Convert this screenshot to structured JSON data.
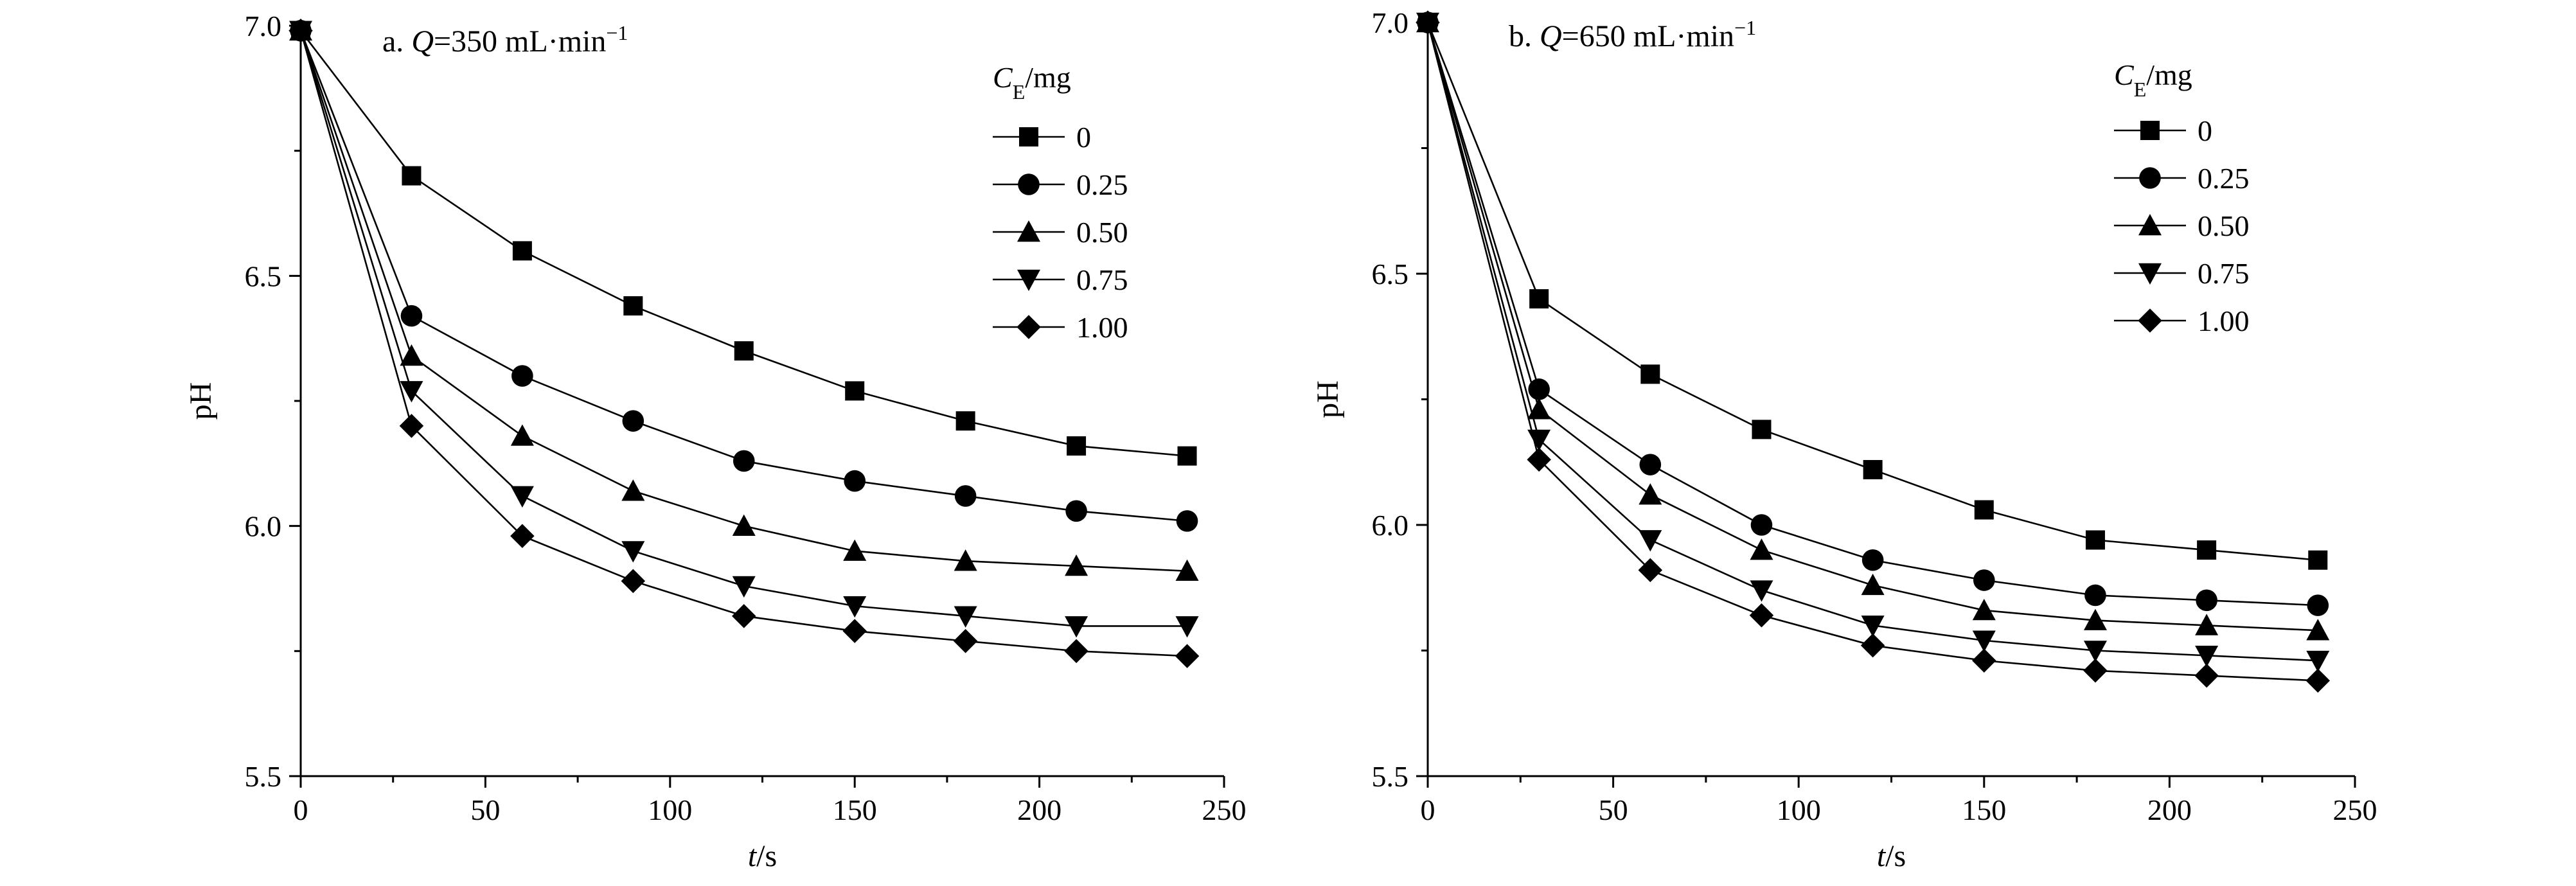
{
  "chart_data": [
    {
      "type": "line",
      "title": "a. Q=350 mL·min⁻¹",
      "title_parts": {
        "prefix": "a. ",
        "var": "Q",
        "rest": "=350 mL·min",
        "sup": "−1"
      },
      "xlabel": "t/s",
      "xlabel_parts": {
        "var": "t",
        "rest": "/s"
      },
      "ylabel": "pH",
      "xlim": [
        0,
        250
      ],
      "ylim": [
        5.5,
        7.0
      ],
      "xticks": [
        0,
        50,
        100,
        150,
        200,
        250
      ],
      "yticks": [
        5.5,
        6.0,
        6.5,
        7.0
      ],
      "xtick_labels": [
        "0",
        "50",
        "100",
        "150",
        "200",
        "250"
      ],
      "ytick_labels": [
        "5.5",
        "6.0",
        "6.5",
        "7.0"
      ],
      "legend_title": "CE/mg",
      "legend_title_parts": {
        "var": "C",
        "sub": "E",
        "rest": "/mg"
      },
      "legend_position": "top-right",
      "x": [
        0,
        30,
        60,
        90,
        120,
        150,
        180,
        210,
        240
      ],
      "series": [
        {
          "name": "0",
          "marker": "square",
          "values": [
            6.99,
            6.7,
            6.55,
            6.44,
            6.35,
            6.27,
            6.21,
            6.16,
            6.14
          ]
        },
        {
          "name": "0.25",
          "marker": "circle",
          "values": [
            6.99,
            6.42,
            6.3,
            6.21,
            6.13,
            6.09,
            6.06,
            6.03,
            6.01
          ]
        },
        {
          "name": "0.50",
          "marker": "triangle-up",
          "values": [
            6.99,
            6.34,
            6.18,
            6.07,
            6.0,
            5.95,
            5.93,
            5.92,
            5.91
          ]
        },
        {
          "name": "0.75",
          "marker": "triangle-down",
          "values": [
            6.99,
            6.27,
            6.06,
            5.95,
            5.88,
            5.84,
            5.82,
            5.8,
            5.8
          ]
        },
        {
          "name": "1.00",
          "marker": "diamond",
          "values": [
            6.99,
            6.2,
            5.98,
            5.89,
            5.82,
            5.79,
            5.77,
            5.75,
            5.74
          ]
        }
      ]
    },
    {
      "type": "line",
      "title": "b. Q=650 mL·min⁻¹",
      "title_parts": {
        "prefix": "b. ",
        "var": "Q",
        "rest": "=650 mL·min",
        "sup": "−1"
      },
      "xlabel": "t/s",
      "xlabel_parts": {
        "var": "t",
        "rest": "/s"
      },
      "ylabel": "pH",
      "xlim": [
        0,
        250
      ],
      "ylim": [
        5.5,
        7.0
      ],
      "xticks": [
        0,
        50,
        100,
        150,
        200,
        250
      ],
      "yticks": [
        5.5,
        6.0,
        6.5,
        7.0
      ],
      "xtick_labels": [
        "0",
        "50",
        "100",
        "150",
        "200",
        "250"
      ],
      "ytick_labels": [
        "5.5",
        "6.0",
        "6.5",
        "7.0"
      ],
      "legend_title": "CE/mg",
      "legend_title_parts": {
        "var": "C",
        "sub": "E",
        "rest": "/mg"
      },
      "legend_position": "top-right",
      "x": [
        0,
        30,
        60,
        90,
        120,
        150,
        180,
        210,
        240
      ],
      "series": [
        {
          "name": "0",
          "marker": "square",
          "values": [
            7.0,
            6.45,
            6.3,
            6.19,
            6.11,
            6.03,
            5.97,
            5.95,
            5.93
          ]
        },
        {
          "name": "0.25",
          "marker": "circle",
          "values": [
            7.0,
            6.27,
            6.12,
            6.0,
            5.93,
            5.89,
            5.86,
            5.85,
            5.84
          ]
        },
        {
          "name": "0.50",
          "marker": "triangle-up",
          "values": [
            7.0,
            6.23,
            6.06,
            5.95,
            5.88,
            5.83,
            5.81,
            5.8,
            5.79
          ]
        },
        {
          "name": "0.75",
          "marker": "triangle-down",
          "values": [
            7.0,
            6.17,
            5.97,
            5.87,
            5.8,
            5.77,
            5.75,
            5.74,
            5.73
          ]
        },
        {
          "name": "1.00",
          "marker": "diamond",
          "values": [
            7.0,
            6.13,
            5.91,
            5.82,
            5.76,
            5.73,
            5.71,
            5.7,
            5.69
          ]
        }
      ]
    }
  ]
}
